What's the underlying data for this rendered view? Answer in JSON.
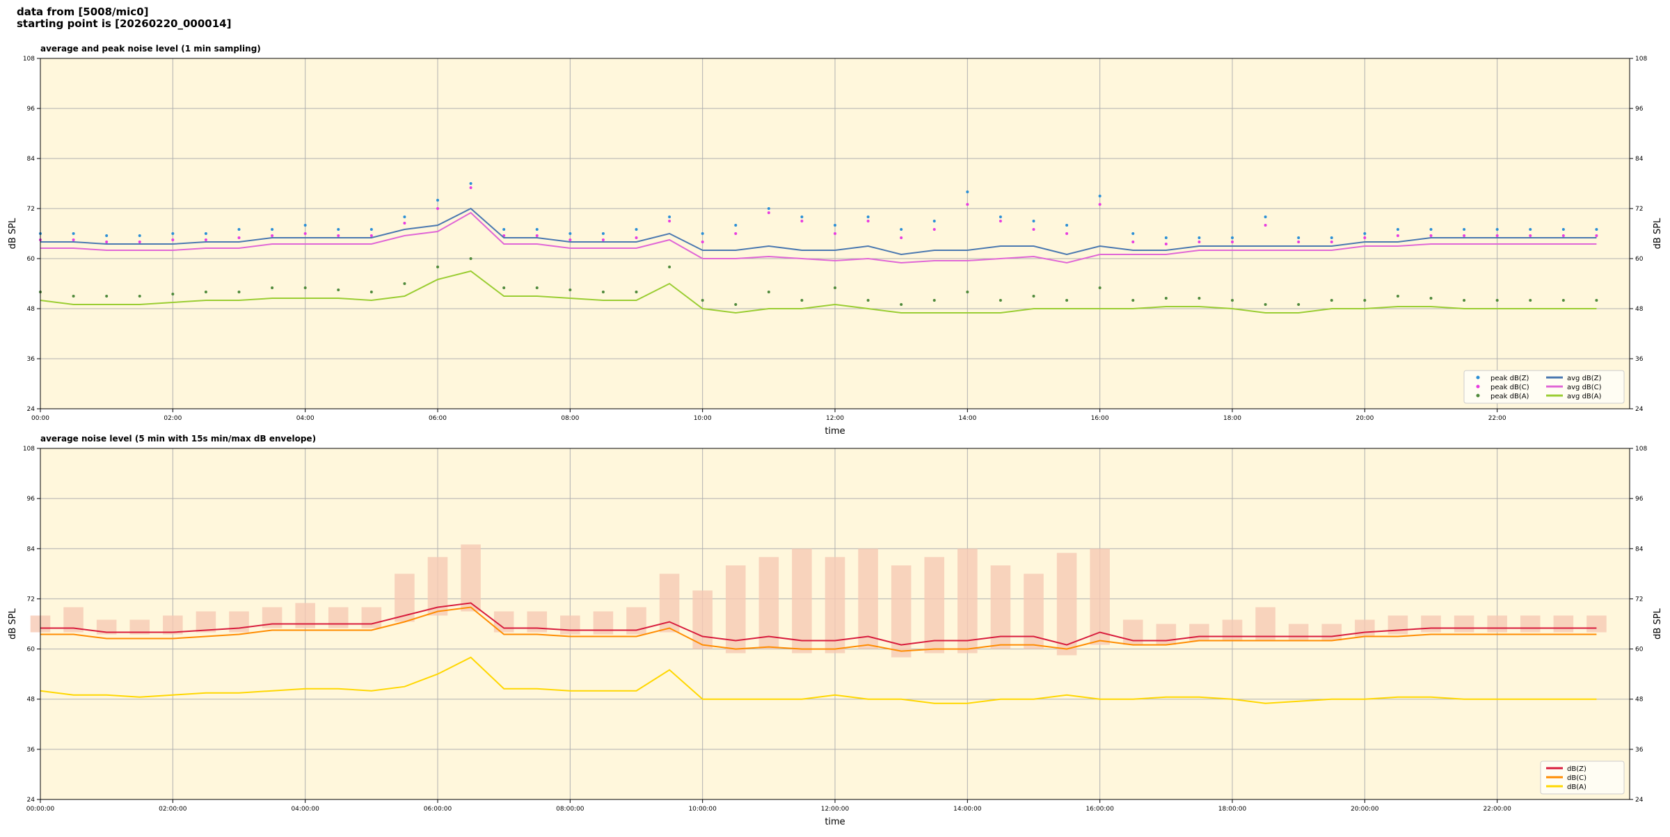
{
  "header": {
    "lines": [
      "data from [5008/mic0]",
      "starting point is [20260220_000014]"
    ]
  },
  "chart_data": [
    {
      "type": "line",
      "title": "average and peak noise level (1 min sampling)",
      "xlabel": "time",
      "ylabel": "dB SPL",
      "x": [
        0,
        0.5,
        1,
        1.5,
        2,
        2.5,
        3,
        3.5,
        4,
        4.5,
        5,
        5.5,
        6,
        6.5,
        7,
        7.5,
        8,
        8.5,
        9,
        9.5,
        10,
        10.5,
        11,
        11.5,
        12,
        12.5,
        13,
        13.5,
        14,
        14.5,
        15,
        15.5,
        16,
        16.5,
        17,
        17.5,
        18,
        18.5,
        19,
        19.5,
        20,
        20.5,
        21,
        21.5,
        22,
        22.5,
        23,
        23.5
      ],
      "xlim": [
        0,
        24
      ],
      "xticks": [
        {
          "value": 0,
          "label": "00:00"
        },
        {
          "value": 2,
          "label": "02:00"
        },
        {
          "value": 4,
          "label": "04:00"
        },
        {
          "value": 6,
          "label": "06:00"
        },
        {
          "value": 8,
          "label": "08:00"
        },
        {
          "value": 10,
          "label": "10:00"
        },
        {
          "value": 12,
          "label": "12:00"
        },
        {
          "value": 14,
          "label": "14:00"
        },
        {
          "value": 16,
          "label": "16:00"
        },
        {
          "value": 18,
          "label": "18:00"
        },
        {
          "value": 20,
          "label": "20:00"
        },
        {
          "value": 22,
          "label": "22:00"
        }
      ],
      "ylim": [
        24,
        108
      ],
      "yticks": [
        24,
        36,
        48,
        60,
        72,
        84,
        96,
        108
      ],
      "grid": true,
      "legend": "lower right",
      "legend_columns": 2,
      "series": [
        {
          "name": "peak dB(Z)",
          "type": "scatter",
          "color": "#2b8fd6",
          "values": [
            66,
            66,
            65.5,
            65.5,
            66,
            66,
            67,
            67,
            68,
            67,
            67,
            70,
            74,
            78,
            67,
            67,
            66,
            66,
            67,
            70,
            66,
            68,
            72,
            70,
            68,
            70,
            67,
            69,
            76,
            70,
            69,
            68,
            75,
            66,
            65,
            65,
            65,
            70,
            65,
            65,
            66,
            67,
            67,
            67,
            67,
            67,
            67,
            67
          ]
        },
        {
          "name": "peak dB(C)",
          "type": "scatter",
          "color": "#e83ce0",
          "values": [
            64.5,
            64.5,
            64,
            64,
            64.5,
            64.5,
            65,
            65.5,
            66,
            65.5,
            65.5,
            68.5,
            72,
            77,
            65.5,
            65.5,
            64.5,
            64.5,
            65,
            69,
            64,
            66,
            71,
            69,
            66,
            69,
            65,
            67,
            73,
            69,
            67,
            66,
            73,
            64,
            63.5,
            64,
            64,
            68,
            64,
            64,
            65,
            65.5,
            65.5,
            65.5,
            65.5,
            65.5,
            65.5,
            65.5
          ]
        },
        {
          "name": "peak dB(A)",
          "type": "scatter",
          "color": "#4f8a3c",
          "values": [
            52,
            51,
            51,
            51,
            51.5,
            52,
            52,
            53,
            53,
            52.5,
            52,
            54,
            58,
            60,
            53,
            53,
            52.5,
            52,
            52,
            58,
            50,
            49,
            52,
            50,
            53,
            50,
            49,
            50,
            52,
            50,
            51,
            50,
            53,
            50,
            50.5,
            50.5,
            50,
            49,
            49,
            50,
            50,
            51,
            50.5,
            50,
            50,
            50,
            50,
            50
          ]
        },
        {
          "name": "avg dB(Z)",
          "type": "line",
          "color": "#4a78b0",
          "values": [
            64,
            64,
            63.5,
            63.5,
            63.5,
            64,
            64,
            65,
            65,
            65,
            65,
            67,
            68,
            72,
            65,
            65,
            64,
            64,
            64,
            66,
            62,
            62,
            63,
            62,
            62,
            63,
            61,
            62,
            62,
            63,
            63,
            61,
            63,
            62,
            62,
            63,
            63,
            63,
            63,
            63,
            64,
            64,
            65,
            65,
            65,
            65,
            65,
            65
          ]
        },
        {
          "name": "avg dB(C)",
          "type": "line",
          "color": "#e066d6",
          "values": [
            62.5,
            62.5,
            62,
            62,
            62,
            62.5,
            62.5,
            63.5,
            63.5,
            63.5,
            63.5,
            65.5,
            66.5,
            71,
            63.5,
            63.5,
            62.5,
            62.5,
            62.5,
            64.5,
            60,
            60,
            60.5,
            60,
            59.5,
            60,
            59,
            59.5,
            59.5,
            60,
            60.5,
            59,
            61,
            61,
            61,
            62,
            62,
            62,
            62,
            62,
            63,
            63,
            63.5,
            63.5,
            63.5,
            63.5,
            63.5,
            63.5
          ]
        },
        {
          "name": "avg dB(A)",
          "type": "line",
          "color": "#9acd32",
          "values": [
            50,
            49,
            49,
            49,
            49.5,
            50,
            50,
            50.5,
            50.5,
            50.5,
            50,
            51,
            55,
            57,
            51,
            51,
            50.5,
            50,
            50,
            54,
            48,
            47,
            48,
            48,
            49,
            48,
            47,
            47,
            47,
            47,
            48,
            48,
            48,
            48,
            48.5,
            48.5,
            48,
            47,
            47,
            48,
            48,
            48.5,
            48.5,
            48,
            48,
            48,
            48,
            48
          ]
        }
      ]
    },
    {
      "type": "line",
      "title": "average noise level (5 min with 15s min/max dB envelope)",
      "xlabel": "time",
      "ylabel": "dB SPL",
      "x": [
        0,
        0.5,
        1,
        1.5,
        2,
        2.5,
        3,
        3.5,
        4,
        4.5,
        5,
        5.5,
        6,
        6.5,
        7,
        7.5,
        8,
        8.5,
        9,
        9.5,
        10,
        10.5,
        11,
        11.5,
        12,
        12.5,
        13,
        13.5,
        14,
        14.5,
        15,
        15.5,
        16,
        16.5,
        17,
        17.5,
        18,
        18.5,
        19,
        19.5,
        20,
        20.5,
        21,
        21.5,
        22,
        22.5,
        23,
        23.5
      ],
      "xlim": [
        0,
        24
      ],
      "xticks": [
        {
          "value": 0,
          "label": "00:00:00"
        },
        {
          "value": 2,
          "label": "02:00:00"
        },
        {
          "value": 4,
          "label": "04:00:00"
        },
        {
          "value": 6,
          "label": "06:00:00"
        },
        {
          "value": 8,
          "label": "08:00:00"
        },
        {
          "value": 10,
          "label": "10:00:00"
        },
        {
          "value": 12,
          "label": "12:00:00"
        },
        {
          "value": 14,
          "label": "14:00:00"
        },
        {
          "value": 16,
          "label": "16:00:00"
        },
        {
          "value": 18,
          "label": "18:00:00"
        },
        {
          "value": 20,
          "label": "20:00:00"
        },
        {
          "value": 22,
          "label": "22:00:00"
        }
      ],
      "ylim": [
        24,
        108
      ],
      "yticks": [
        24,
        36,
        48,
        60,
        72,
        84,
        96,
        108
      ],
      "grid": true,
      "legend": "lower right",
      "legend_columns": 1,
      "envelope": {
        "color": "#f6c9b4",
        "upper": [
          68,
          70,
          67,
          67,
          68,
          69,
          69,
          70,
          71,
          70,
          70,
          78,
          82,
          85,
          69,
          69,
          68,
          69,
          70,
          78,
          74,
          80,
          82,
          84,
          82,
          84,
          80,
          82,
          84,
          80,
          78,
          83,
          84,
          67,
          66,
          66,
          67,
          70,
          66,
          66,
          67,
          68,
          68,
          68,
          68,
          68,
          68,
          68
        ],
        "lower": [
          64,
          64,
          63.5,
          63.5,
          63.5,
          64,
          64,
          65,
          65,
          65,
          65,
          66.5,
          68,
          69,
          64,
          64,
          63.5,
          63.5,
          63.5,
          64,
          60,
          59,
          60,
          59,
          59,
          60,
          58,
          59,
          59,
          60,
          60,
          58.5,
          61,
          61,
          61,
          62,
          62,
          62,
          62,
          62,
          63,
          63.5,
          64,
          64,
          64,
          64,
          64,
          64
        ]
      },
      "series": [
        {
          "name": "dB(Z)",
          "type": "line",
          "color": "#d81b3c",
          "values": [
            65,
            65,
            64,
            64,
            64,
            64.5,
            65,
            66,
            66,
            66,
            66,
            68,
            70,
            71,
            65,
            65,
            64.5,
            64.5,
            64.5,
            66.5,
            63,
            62,
            63,
            62,
            62,
            63,
            61,
            62,
            62,
            63,
            63,
            61,
            64,
            62,
            62,
            63,
            63,
            63,
            63,
            63,
            64,
            64.5,
            65,
            65,
            65,
            65,
            65,
            65
          ]
        },
        {
          "name": "dB(C)",
          "type": "line",
          "color": "#ff8c00",
          "values": [
            63.5,
            63.5,
            62.5,
            62.5,
            62.5,
            63,
            63.5,
            64.5,
            64.5,
            64.5,
            64.5,
            66.5,
            69,
            70,
            63.5,
            63.5,
            63,
            63,
            63,
            65,
            61,
            60,
            60.5,
            60,
            60,
            61,
            59.5,
            60,
            60,
            61,
            61,
            60,
            62,
            61,
            61,
            62,
            62,
            62,
            62,
            62,
            63,
            63,
            63.5,
            63.5,
            63.5,
            63.5,
            63.5,
            63.5
          ]
        },
        {
          "name": "dB(A)",
          "type": "line",
          "color": "#ffd700",
          "values": [
            50,
            49,
            49,
            48.5,
            49,
            49.5,
            49.5,
            50,
            50.5,
            50.5,
            50,
            51,
            54,
            58,
            50.5,
            50.5,
            50,
            50,
            50,
            55,
            48,
            48,
            48,
            48,
            49,
            48,
            48,
            47,
            47,
            48,
            48,
            49,
            48,
            48,
            48.5,
            48.5,
            48,
            47,
            47.5,
            48,
            48,
            48.5,
            48.5,
            48,
            48,
            48,
            48,
            48
          ]
        }
      ]
    }
  ]
}
